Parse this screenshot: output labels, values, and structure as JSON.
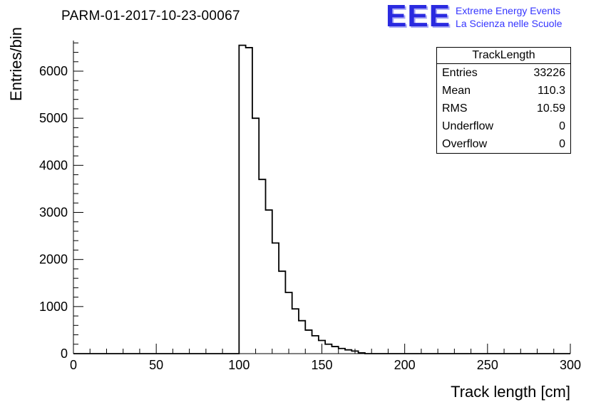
{
  "title": "PARM-01-2017-10-23-00067",
  "logo": {
    "text": "EEE",
    "line1": "Extreme Energy Events",
    "line2": "La Scienza nelle Scuole",
    "color": "#3535ff"
  },
  "stats_box": {
    "header": "TrackLength",
    "rows": [
      {
        "label": "Entries",
        "value": "33226"
      },
      {
        "label": "Mean",
        "value": "110.3"
      },
      {
        "label": "RMS",
        "value": "10.59"
      },
      {
        "label": "Underflow",
        "value": "0"
      },
      {
        "label": "Overflow",
        "value": "0"
      }
    ]
  },
  "chart_data": {
    "type": "bar",
    "subtype": "histogram-outline",
    "title": "PARM-01-2017-10-23-00067",
    "xlabel": "Track length [cm]",
    "ylabel": "Entries/bin",
    "xlim": [
      0,
      300
    ],
    "ylim": [
      0,
      6650
    ],
    "x_major_ticks": [
      0,
      50,
      100,
      150,
      200,
      250,
      300
    ],
    "x_minor_step": 10,
    "y_major_ticks": [
      0,
      1000,
      2000,
      3000,
      4000,
      5000,
      6000
    ],
    "y_minor_step": 200,
    "grid": false,
    "line_color": "#000000",
    "bin_start": 100,
    "bin_width": 4,
    "values": [
      6550,
      6500,
      5000,
      3700,
      3050,
      2350,
      1750,
      1300,
      950,
      700,
      500,
      380,
      280,
      200,
      150,
      110,
      80,
      55,
      16
    ]
  }
}
